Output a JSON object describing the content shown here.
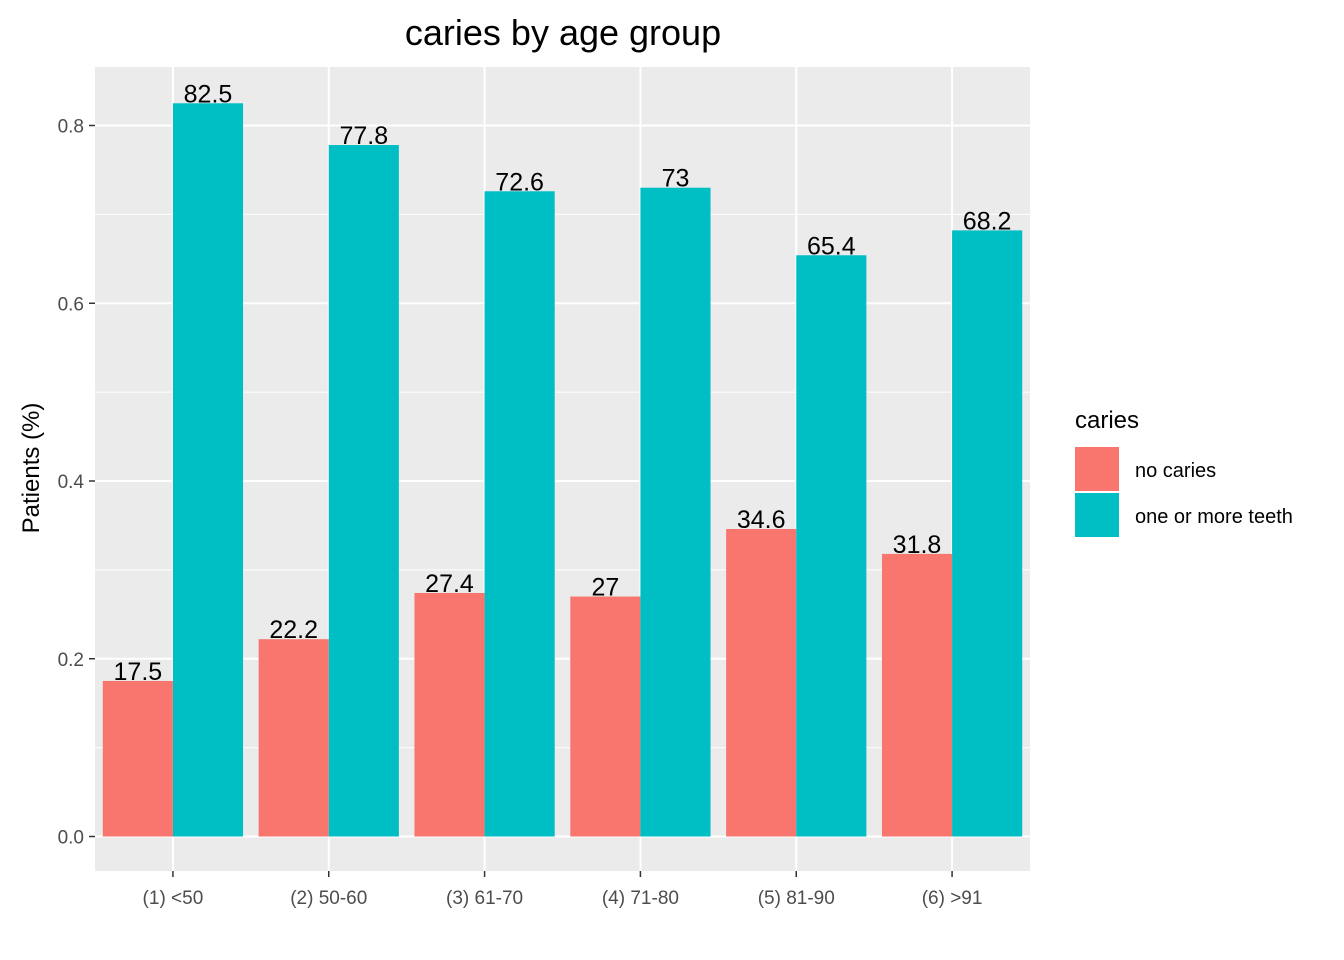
{
  "chart_data": {
    "type": "bar",
    "title": "caries by age group",
    "xlabel": "",
    "ylabel": "Patients (%)",
    "ylim": [
      -0.04,
      0.87
    ],
    "yticks": [
      0.0,
      0.2,
      0.4,
      0.6,
      0.8
    ],
    "ytick_labels": [
      "0.0",
      "0.2",
      "0.4",
      "0.6",
      "0.8"
    ],
    "categories": [
      "(1) <50",
      "(2) 50-60",
      "(3) 61-70",
      "(4) 71-80",
      "(5) 81-90",
      "(6) >91"
    ],
    "series": [
      {
        "name": "no caries",
        "color": "#F8766D",
        "values": [
          0.175,
          0.222,
          0.274,
          0.27,
          0.346,
          0.318
        ],
        "labels": [
          "17.5",
          "22.2",
          "27.4",
          "27",
          "34.6",
          "31.8"
        ]
      },
      {
        "name": "one or more teeth",
        "color": "#00BFC4",
        "values": [
          0.825,
          0.778,
          0.726,
          0.73,
          0.654,
          0.682
        ],
        "labels": [
          "82.5",
          "77.8",
          "72.6",
          "73",
          "65.4",
          "68.2"
        ]
      }
    ],
    "legend": {
      "title": "caries",
      "placement": "right"
    },
    "grid": true,
    "panel_background": "#EBEBEB",
    "grid_color": "#FFFFFF"
  }
}
